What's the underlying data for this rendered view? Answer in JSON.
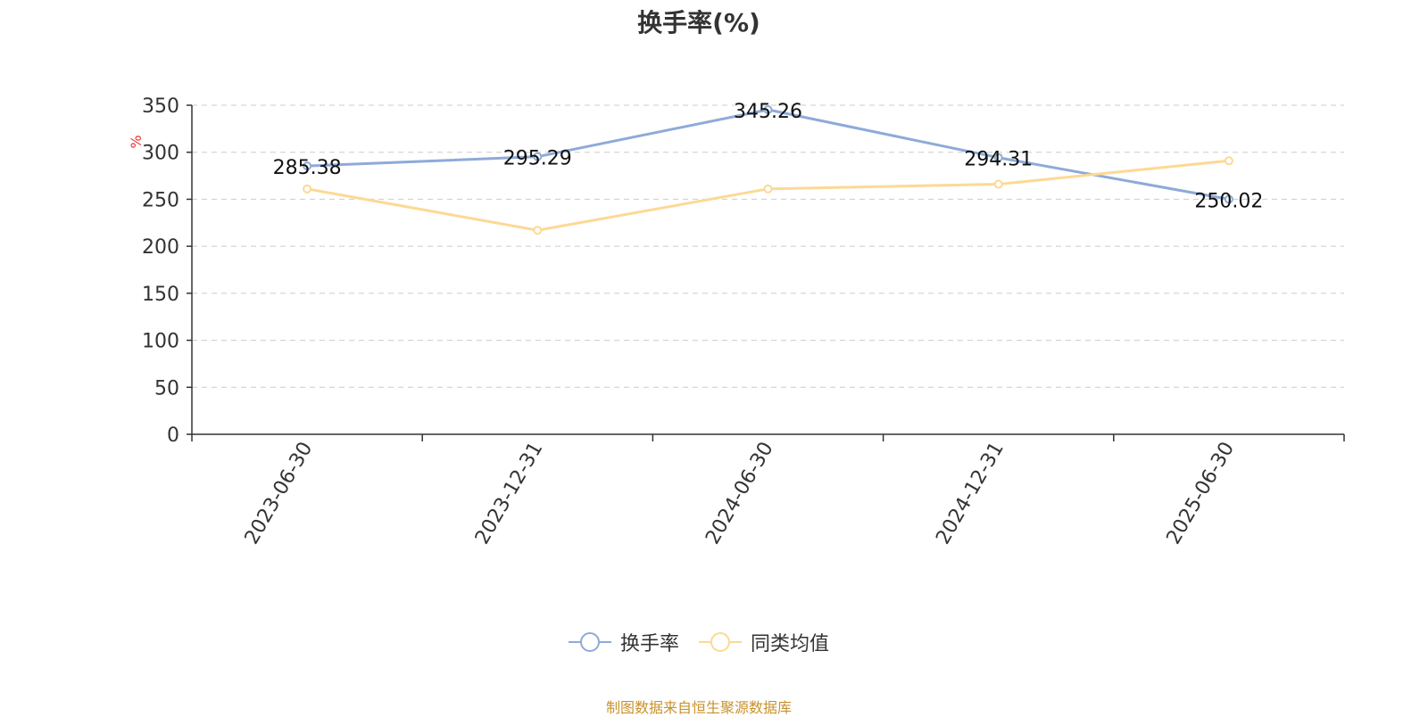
{
  "chart_data": {
    "type": "line",
    "title": "换手率(%)",
    "ylabel": "%",
    "categories": [
      "2023-06-30",
      "2023-12-31",
      "2024-06-30",
      "2024-12-31",
      "2025-06-30"
    ],
    "ylim": [
      0,
      350
    ],
    "yticks": [
      0,
      50,
      100,
      150,
      200,
      250,
      300,
      350
    ],
    "grid": true,
    "legend_position": "bottom",
    "series": [
      {
        "name": "换手率",
        "color": "#8eaad8",
        "values": [
          285.38,
          295.29,
          345.26,
          294.31,
          250.02
        ],
        "show_labels": true
      },
      {
        "name": "同类均值",
        "color": "#fcd994",
        "values": [
          261,
          217,
          261,
          266,
          291
        ],
        "show_labels": false
      }
    ]
  },
  "source_note": "制图数据来自恒生聚源数据库"
}
